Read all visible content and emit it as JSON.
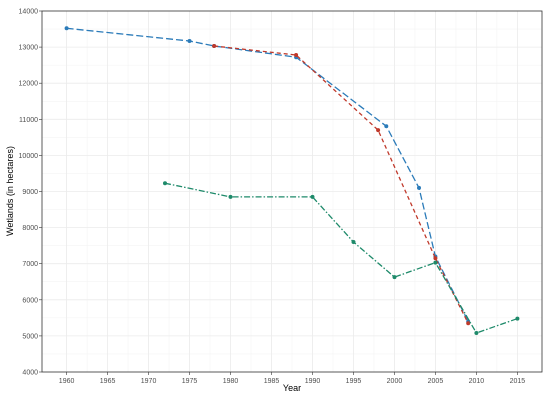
{
  "chart_data": {
    "type": "line",
    "title": "",
    "xlabel": "Year",
    "ylabel": "Wetlands (in hectares)",
    "xlim": [
      1957,
      1918
    ],
    "ylim": [
      4000,
      14000
    ],
    "x_ticks": [
      1960,
      1965,
      1970,
      1975,
      1980,
      1985,
      1990,
      1995,
      2000,
      2005,
      2010,
      2015
    ],
    "y_ticks": [
      4000,
      5000,
      6000,
      7000,
      8000,
      9000,
      10000,
      11000,
      12000,
      13000,
      14000
    ],
    "grid": true,
    "legend": "none",
    "series": [
      {
        "color": "#2b7bb9",
        "dash": "long-dash",
        "points": [
          [
            1960,
            13520
          ],
          [
            1975,
            13170
          ],
          [
            1978,
            13030
          ],
          [
            1988,
            12720
          ],
          [
            1999,
            10810
          ],
          [
            2003,
            9100
          ],
          [
            2005,
            7200
          ],
          [
            2009,
            5400
          ]
        ]
      },
      {
        "color": "#c0392b",
        "dash": "dash",
        "points": [
          [
            1978,
            13030
          ],
          [
            1988,
            12780
          ],
          [
            1998,
            10700
          ],
          [
            2005,
            7150
          ],
          [
            2009,
            5350
          ]
        ]
      },
      {
        "color": "#1e8a6a",
        "dash": "dash-dot",
        "points": [
          [
            1972,
            9230
          ],
          [
            1980,
            8850
          ],
          [
            1990,
            8850
          ],
          [
            1995,
            7600
          ],
          [
            2000,
            6630
          ],
          [
            2005,
            7030
          ],
          [
            2010,
            5080
          ],
          [
            2015,
            5480
          ]
        ]
      }
    ]
  }
}
